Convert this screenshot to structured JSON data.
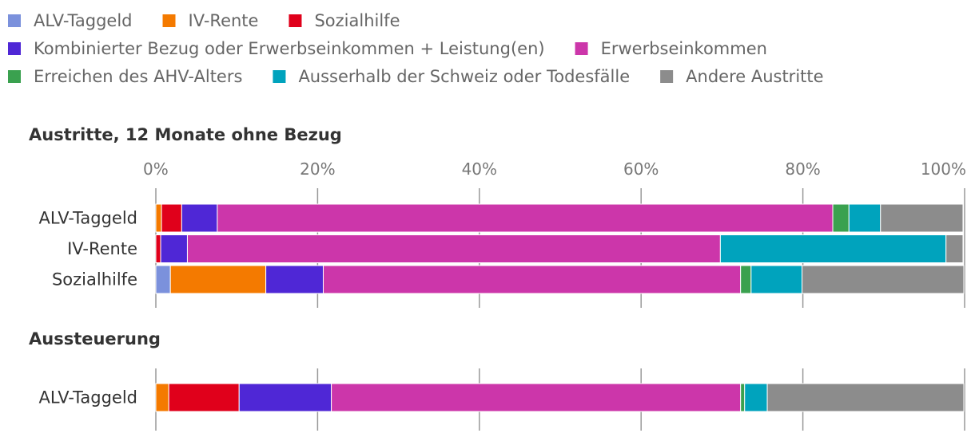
{
  "chart_data": {
    "type": "bar",
    "orientation": "horizontal",
    "stacked": true,
    "legend": [
      {
        "name": "ALV-Taggeld",
        "color": "#7b91dc"
      },
      {
        "name": "IV-Rente",
        "color": "#f47a00"
      },
      {
        "name": "Sozialhilfe",
        "color": "#e0001b"
      },
      {
        "name": "Kombinierter Bezug oder Erwerbseinkommen + Leistung(en)",
        "color": "#4f27d6"
      },
      {
        "name": "Erwerbseinkommen",
        "color": "#cc36aa"
      },
      {
        "name": "Erreichen des AHV-Alters",
        "color": "#3aa14f"
      },
      {
        "name": "Ausserhalb der Schweiz oder Todesfälle",
        "color": "#00a3bd"
      },
      {
        "name": "Andere Austritte",
        "color": "#8c8c8c"
      }
    ],
    "xlim": [
      0,
      100
    ],
    "ticks": [
      "0%",
      "20%",
      "40%",
      "60%",
      "80%",
      "100%"
    ],
    "panels": [
      {
        "title": "Austritte, 12 Monate ohne Bezug",
        "categories": [
          "ALV-Taggeld",
          "IV-Rente",
          "Sozialhilfe"
        ],
        "values": [
          [
            0,
            0.7,
            2.5,
            4.4,
            76.1,
            2.0,
            3.9,
            10.2
          ],
          [
            0,
            0,
            0.6,
            3.3,
            65.9,
            0,
            27.9,
            2.1
          ],
          [
            1.8,
            11.8,
            0,
            7.1,
            51.6,
            1.3,
            6.3,
            20.0
          ]
        ]
      },
      {
        "title": "Aussteuerung",
        "categories": [
          "ALV-Taggeld"
        ],
        "values": [
          [
            0,
            1.6,
            8.7,
            11.4,
            50.6,
            0.5,
            2.8,
            24.3
          ]
        ]
      }
    ]
  }
}
